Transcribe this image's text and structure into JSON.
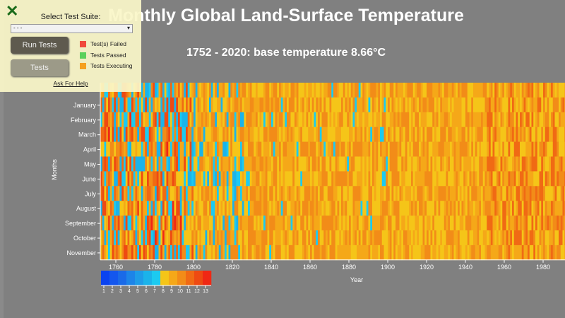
{
  "chart_data": {
    "type": "heatmap",
    "title": "Monthly Global Land-Surface Temperature",
    "subtitle": "1752 - 2020: base temperature 8.66°C",
    "xlabel": "Year",
    "ylabel": "Months",
    "xlim": [
      1752,
      2020
    ],
    "x_ticks": [
      "1760",
      "1780",
      "1800",
      "1820",
      "1840",
      "1860",
      "1880",
      "1900",
      "1920",
      "1940",
      "1960",
      "1980"
    ],
    "y_ticks": [
      "January",
      "February",
      "March",
      "April",
      "May",
      "June",
      "July",
      "August",
      "September",
      "October",
      "November"
    ],
    "base_temperature": 8.66,
    "legend": {
      "ticks": [
        "1",
        "2",
        "3",
        "4",
        "5",
        "6",
        "7",
        "8",
        "9",
        "10",
        "11",
        "12",
        "13"
      ],
      "colors": [
        "#0a43f0",
        "#1457ee",
        "#1a6ae8",
        "#1d84e8",
        "#1e9ce8",
        "#1bb3ea",
        "#1ccaf0",
        "#f5c518",
        "#f5a818",
        "#f28c18",
        "#f06a14",
        "#ee4a12",
        "#f02814"
      ]
    }
  },
  "test_panel": {
    "select_label": "Select Test Suite:",
    "select_value": "- - -",
    "run_button": "Run Tests",
    "tests_button": "Tests",
    "legend": [
      {
        "label": "Test(s) Failed",
        "color": "#f04a3c"
      },
      {
        "label": "Tests Passed",
        "color": "#5cd05c"
      },
      {
        "label": "Tests Executing",
        "color": "#f5a020"
      }
    ],
    "help_link": "Ask For Help"
  }
}
